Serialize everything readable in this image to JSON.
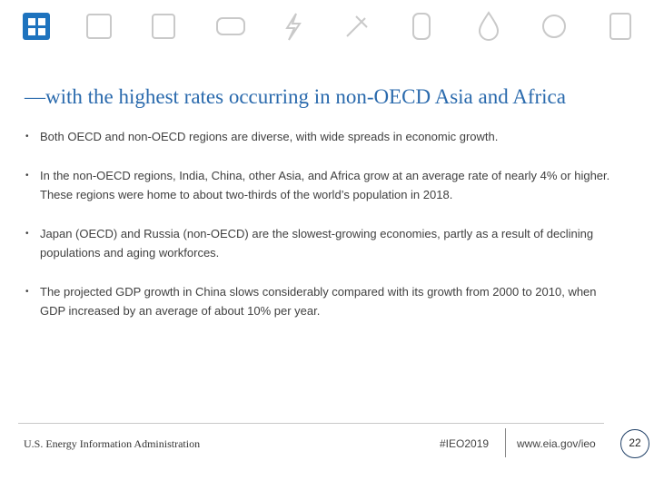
{
  "title": "—with the highest rates occurring in non-OECD Asia and Africa",
  "bullets": [
    "Both OECD and non-OECD regions are diverse, with wide spreads in economic growth.",
    "In the non-OECD regions, India, China, other Asia, and Africa grow at an average rate of nearly 4% or higher. These regions were home to about two-thirds of the world’s population in 2018.",
    "Japan (OECD) and Russia (non-OECD) are the slowest-growing economies, partly as a result of declining populations and aging workforces.",
    "The projected GDP growth in China slows considerably compared with its growth from 2000 to 2010, when GDP increased by an average of about 10% per year."
  ],
  "footer": {
    "organization": "U.S. Energy Information Administration",
    "hashtag": "#IEO2019",
    "url": "www.eia.gov/ieo",
    "page": "22"
  }
}
